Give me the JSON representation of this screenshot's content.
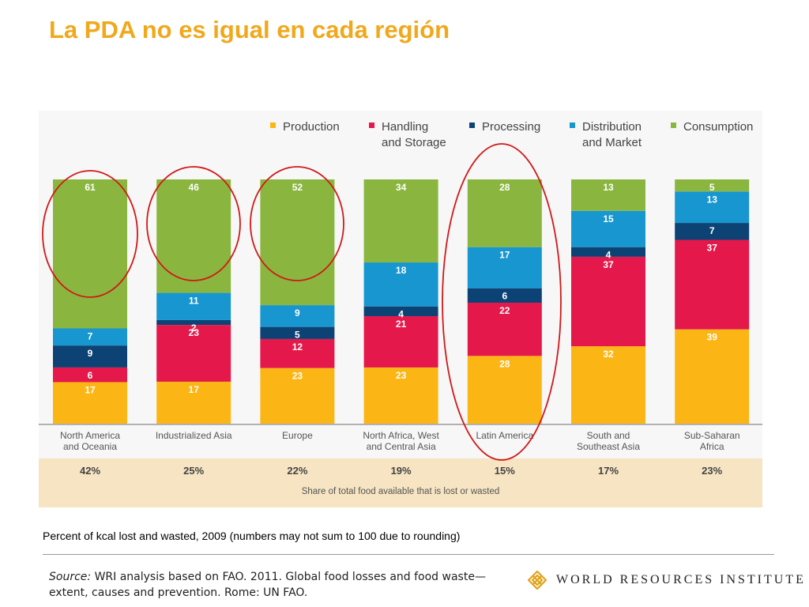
{
  "slide": {
    "title": "La PDA no es igual en cada región",
    "caption": "Percent of kcal lost and wasted, 2009 (numbers may not sum to 100 due to rounding)",
    "source_label": "Source:",
    "source_text": "WRI analysis based on FAO. 2011. Global food losses and food waste— extent, causes and prevention. Rome: UN FAO.",
    "logo_text": "WORLD RESOURCES INSTITUTE",
    "logo_icon": "wri-lattice-icon"
  },
  "chart_data": {
    "type": "bar",
    "stacked": true,
    "normalized_percent": true,
    "title": "",
    "xlabel": "",
    "ylabel": "",
    "ylim": [
      0,
      100
    ],
    "grid": false,
    "legend_position": "top",
    "categories": [
      [
        "North America",
        "and Oceania"
      ],
      [
        "Industrialized Asia"
      ],
      [
        "Europe"
      ],
      [
        "North Africa, West",
        "and Central Asia"
      ],
      [
        "Latin America"
      ],
      [
        "South and",
        "Southeast Asia"
      ],
      [
        "Sub-Saharan",
        "Africa"
      ]
    ],
    "series": [
      {
        "name": "Production",
        "color": "#fbb616",
        "values": [
          17,
          17,
          23,
          23,
          28,
          32,
          39
        ]
      },
      {
        "name": "Handling and Storage",
        "color": "#e4184a",
        "values": [
          6,
          23,
          12,
          21,
          22,
          37,
          37
        ]
      },
      {
        "name": "Processing",
        "color": "#0d4374",
        "values": [
          9,
          2,
          5,
          4,
          6,
          4,
          7
        ]
      },
      {
        "name": "Distribution and Market",
        "color": "#1796cf",
        "values": [
          7,
          11,
          9,
          18,
          17,
          15,
          13
        ]
      },
      {
        "name": "Consumption",
        "color": "#8ab63f",
        "values": [
          61,
          46,
          52,
          34,
          28,
          13,
          5
        ]
      }
    ],
    "share_row": {
      "label": "Share of total food available that is lost or wasted",
      "values": [
        "42%",
        "25%",
        "22%",
        "19%",
        "15%",
        "17%",
        "23%"
      ],
      "background": "#f6e4c2"
    },
    "highlight_ellipses": {
      "color": "#d01818",
      "categories": [
        "North America and Oceania",
        "Industrialized Asia",
        "Europe",
        "Latin America"
      ]
    }
  }
}
